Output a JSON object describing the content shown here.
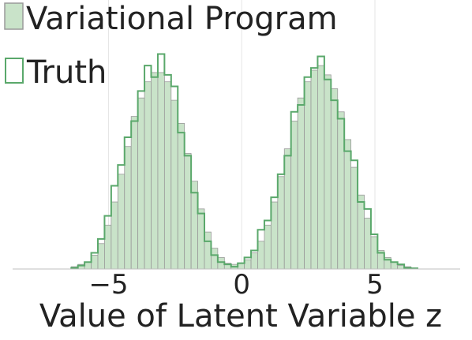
{
  "colors": {
    "fill": "#c9e3c9",
    "fill_stroke": "#9a9a9a",
    "outline": "#5aa86b",
    "grid": "#e6e6e6",
    "baseline": "#bfbfbf"
  },
  "chart_data": {
    "type": "histogram",
    "title": "",
    "xlabel": "Value of Latent Variable z",
    "ylabel": "",
    "xlim": [
      -8.6,
      8.2
    ],
    "ylim": [
      0,
      1
    ],
    "grid": "vertical",
    "legend": {
      "placement": "top-left",
      "entries": [
        {
          "label": "Variational Program",
          "style": "filled"
        },
        {
          "label": "Truth",
          "style": "outline"
        }
      ]
    },
    "xticks": [
      {
        "value": -5,
        "label": "−5"
      },
      {
        "value": 0,
        "label": "0"
      },
      {
        "value": 5,
        "label": "5"
      }
    ],
    "bin_edges": [
      -6.4,
      -6.15,
      -5.9,
      -5.65,
      -5.4,
      -5.15,
      -4.9,
      -4.65,
      -4.4,
      -4.15,
      -3.9,
      -3.65,
      -3.4,
      -3.15,
      -2.9,
      -2.65,
      -2.4,
      -2.15,
      -1.9,
      -1.65,
      -1.4,
      -1.15,
      -0.9,
      -0.65,
      -0.4,
      -0.15,
      0.1,
      0.35,
      0.6,
      0.85,
      1.1,
      1.35,
      1.6,
      1.85,
      2.1,
      2.35,
      2.6,
      2.85,
      3.1,
      3.35,
      3.6,
      3.85,
      4.1,
      4.35,
      4.6,
      4.85,
      5.1,
      5.35,
      5.6,
      5.85,
      6.1,
      6.35,
      6.6
    ],
    "series": [
      {
        "name": "Variational Program",
        "style": "filled",
        "values": [
          0.01,
          0.02,
          0.03,
          0.06,
          0.11,
          0.19,
          0.29,
          0.41,
          0.53,
          0.66,
          0.74,
          0.81,
          0.85,
          0.85,
          0.81,
          0.73,
          0.63,
          0.5,
          0.38,
          0.26,
          0.16,
          0.09,
          0.05,
          0.025,
          0.02,
          0.025,
          0.04,
          0.07,
          0.12,
          0.19,
          0.29,
          0.4,
          0.52,
          0.64,
          0.74,
          0.81,
          0.86,
          0.88,
          0.84,
          0.78,
          0.68,
          0.56,
          0.44,
          0.32,
          0.22,
          0.14,
          0.08,
          0.05,
          0.03,
          0.015,
          0.01,
          0.005
        ]
      },
      {
        "name": "Truth",
        "style": "outline",
        "values": [
          0.005,
          0.015,
          0.03,
          0.07,
          0.13,
          0.23,
          0.36,
          0.45,
          0.57,
          0.64,
          0.77,
          0.88,
          0.83,
          0.93,
          0.84,
          0.79,
          0.59,
          0.49,
          0.33,
          0.24,
          0.12,
          0.06,
          0.03,
          0.02,
          0.01,
          0.025,
          0.05,
          0.08,
          0.17,
          0.21,
          0.31,
          0.41,
          0.49,
          0.68,
          0.71,
          0.83,
          0.87,
          0.92,
          0.82,
          0.73,
          0.65,
          0.51,
          0.47,
          0.29,
          0.26,
          0.15,
          0.07,
          0.04,
          0.03,
          0.02,
          0.005,
          0.003
        ]
      }
    ]
  }
}
